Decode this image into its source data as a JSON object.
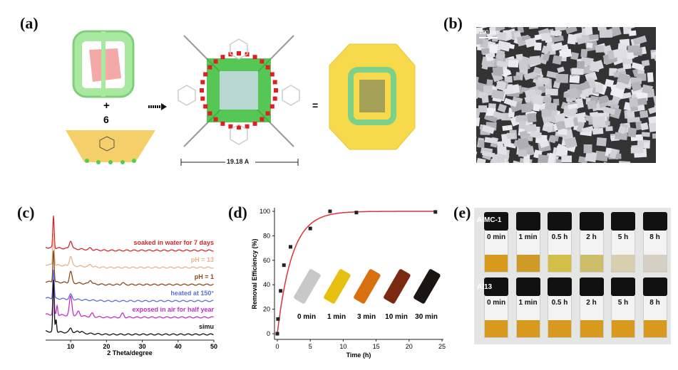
{
  "panels": {
    "a": {
      "label": "(a)",
      "plus": "+",
      "count": "6",
      "equals": "=",
      "scale_text": "19.18 A"
    },
    "b": {
      "label": "(b)",
      "scale_text": "100 μm"
    },
    "c": {
      "label": "(c)"
    },
    "d": {
      "label": "(d)"
    },
    "e": {
      "label": "(e)",
      "row_labels": [
        "AlMC-1",
        "Al13"
      ],
      "times": [
        "0 min",
        "1 min",
        "0.5 h",
        "2 h",
        "5 h",
        "8 h"
      ],
      "row1_colors": [
        "#d79a1c",
        "#cf9a28",
        "#d3bf48",
        "#cdbf6a",
        "#d8cfb0",
        "#d6cfc4"
      ],
      "row2_colors": [
        "#d89a1e",
        "#d89a1e",
        "#d89a1e",
        "#d89a1e",
        "#d89a1e",
        "#d89a1e"
      ]
    }
  },
  "chart_data": [
    {
      "type": "line",
      "title": "",
      "xlabel": "2 Theta/degree",
      "ylabel": "",
      "xlim": [
        3,
        50
      ],
      "xticks": [
        "10",
        "20",
        "30",
        "40",
        "50"
      ],
      "series": [
        {
          "name": "soaked in water for 7 days",
          "color": "#d0282e",
          "peaks": [
            [
              5.2,
              1.0
            ],
            [
              10.0,
              0.25
            ],
            [
              15.5,
              0.05
            ]
          ]
        },
        {
          "name": "pH = 13",
          "color": "#e8b48c",
          "peaks": [
            [
              5.2,
              1.0
            ],
            [
              10.0,
              0.3
            ],
            [
              15.5,
              0.08
            ]
          ]
        },
        {
          "name": "pH = 1",
          "color": "#8b4a1c",
          "peaks": [
            [
              5.2,
              1.0
            ],
            [
              10.0,
              0.35
            ],
            [
              15.5,
              0.12
            ],
            [
              24.5,
              0.06
            ]
          ]
        },
        {
          "name": "heated at 150°",
          "color": "#5c6fd8",
          "peaks": [
            [
              5.2,
              0.9
            ],
            [
              10.0,
              0.15
            ]
          ]
        },
        {
          "name": "exposed in air for half year",
          "color": "#c030c8",
          "peaks": [
            [
              5.2,
              1.0
            ],
            [
              6.2,
              0.3
            ],
            [
              10.0,
              0.6
            ],
            [
              12.2,
              0.15
            ],
            [
              16,
              0.1
            ],
            [
              24.5,
              0.12
            ]
          ]
        },
        {
          "name": "simu",
          "color": "#111111",
          "peaks": [
            [
              5.2,
              1.6
            ],
            [
              5.9,
              0.4
            ],
            [
              10.0,
              0.15
            ],
            [
              12,
              0.06
            ],
            [
              13,
              0.05
            ]
          ]
        }
      ]
    },
    {
      "type": "scatter",
      "title": "",
      "xlabel": "Time (h)",
      "ylabel": "Removal Efficiency (%)",
      "xlim": [
        0,
        25
      ],
      "ylim": [
        0,
        100
      ],
      "xticks": [
        "0",
        "5",
        "10",
        "15",
        "20",
        "25"
      ],
      "yticks": [
        "0",
        "20",
        "40",
        "60",
        "80",
        "100"
      ],
      "points": [
        [
          0,
          0
        ],
        [
          0.1,
          12
        ],
        [
          0.5,
          35
        ],
        [
          1,
          56
        ],
        [
          2,
          71
        ],
        [
          5,
          86
        ],
        [
          8,
          100
        ],
        [
          12,
          99
        ],
        [
          24,
          99.5
        ]
      ],
      "fit": {
        "name": "fit",
        "color": "#e0303a",
        "model": "100*(1-exp(-k t))",
        "k": 0.45
      },
      "inset_labels": [
        "0 min",
        "1 min",
        "3 min",
        "10 min",
        "30 min"
      ],
      "inset_colors": [
        "#c8c8c8",
        "#e6c010",
        "#d87010",
        "#7a2a10",
        "#1a1412"
      ]
    }
  ]
}
